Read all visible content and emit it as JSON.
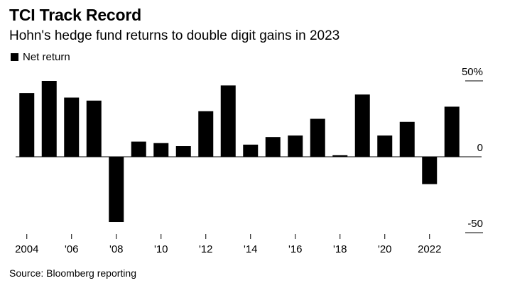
{
  "header": {
    "title": "TCI Track Record",
    "subtitle": "Hohn's hedge fund returns to double digit gains in 2023"
  },
  "legend": {
    "label": "Net return",
    "color": "#000000"
  },
  "footer": {
    "source": "Source: Bloomberg reporting"
  },
  "chart_data": {
    "type": "bar",
    "title": "TCI Track Record",
    "subtitle": "Hohn's hedge fund returns to double digit gains in 2023",
    "xlabel": "",
    "ylabel": "",
    "ylim": [
      -50,
      50
    ],
    "grid": false,
    "legend_position": "top-left",
    "categories": [
      "2004",
      "2005",
      "2006",
      "2007",
      "2008",
      "2009",
      "2010",
      "2011",
      "2012",
      "2013",
      "2014",
      "2015",
      "2016",
      "2017",
      "2018",
      "2019",
      "2020",
      "2021",
      "2022",
      "2023"
    ],
    "series": [
      {
        "name": "Net return",
        "color": "#000000",
        "values": [
          42,
          50,
          39,
          37,
          -43,
          10,
          9,
          7,
          30,
          47,
          8,
          13,
          14,
          25,
          1,
          41,
          14,
          23,
          -18,
          33
        ]
      }
    ],
    "x_tick_labels": [
      {
        "category": "2004",
        "label": "2004"
      },
      {
        "category": "2006",
        "label": "'06"
      },
      {
        "category": "2008",
        "label": "'08"
      },
      {
        "category": "2010",
        "label": "'10"
      },
      {
        "category": "2012",
        "label": "'12"
      },
      {
        "category": "2014",
        "label": "'14"
      },
      {
        "category": "2016",
        "label": "'16"
      },
      {
        "category": "2018",
        "label": "'18"
      },
      {
        "category": "2020",
        "label": "'20"
      },
      {
        "category": "2022",
        "label": "2022"
      }
    ],
    "y_ticks": [
      {
        "value": 50,
        "label": "50%"
      },
      {
        "value": 0,
        "label": "0"
      },
      {
        "value": -50,
        "label": "-50"
      }
    ]
  }
}
